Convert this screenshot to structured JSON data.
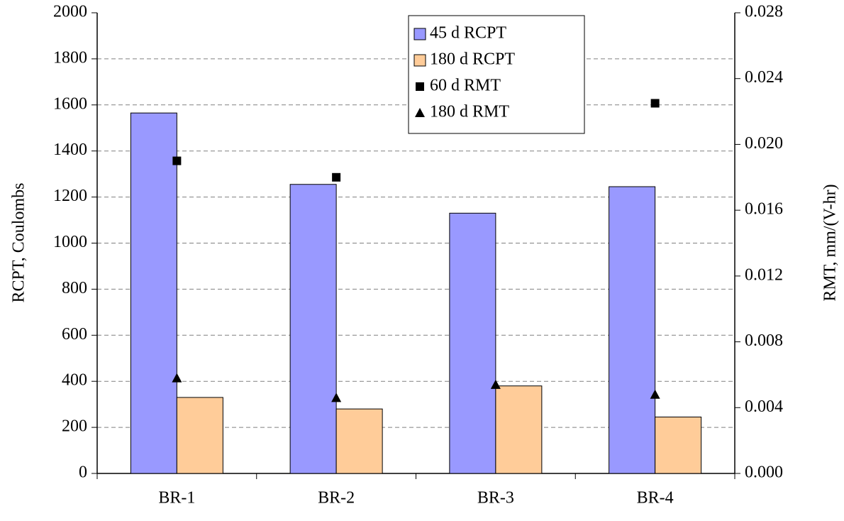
{
  "chart_data": {
    "type": "bar",
    "categories": [
      "BR-1",
      "BR-2",
      "BR-3",
      "BR-4"
    ],
    "ylabel": "RCPT, Coulombs",
    "y2label": "RMT, mm/(V-hr)",
    "ylim": [
      0,
      2000
    ],
    "yticks": [
      0,
      200,
      400,
      600,
      800,
      1000,
      1200,
      1400,
      1600,
      1800,
      2000
    ],
    "y2lim": [
      0,
      0.028
    ],
    "y2ticks": [
      {
        "value": 0,
        "label": "0.000"
      },
      0.004,
      0.008,
      0.012,
      0.016,
      {
        "value": 0.02,
        "label": "0.020"
      },
      0.024,
      0.028
    ],
    "grid": true,
    "legend": "top",
    "series": [
      {
        "name": "45 d RCPT",
        "color": "#9999ff",
        "values": [
          1565,
          1255,
          1130,
          1245
        ]
      },
      {
        "name": "180 d RCPT",
        "color": "#ffcc99",
        "values": [
          330,
          280,
          380,
          245
        ]
      },
      {
        "name": "60 d RMT",
        "color": "#000000",
        "marker": "square",
        "axis": "y2",
        "values": [
          0.019,
          0.018,
          null,
          0.0225
        ]
      },
      {
        "name": "180 d RMT",
        "color": "#000000",
        "marker": "triangle",
        "axis": "y2",
        "values": [
          0.0058,
          0.0046,
          0.0054,
          0.0048
        ]
      }
    ]
  }
}
